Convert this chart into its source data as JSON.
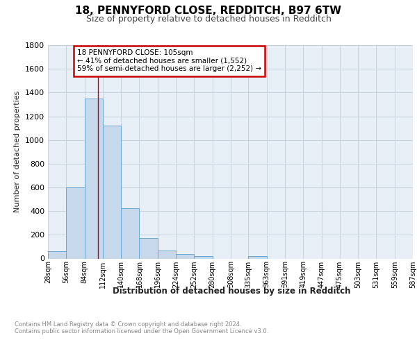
{
  "title1": "18, PENNYFORD CLOSE, REDDITCH, B97 6TW",
  "title2": "Size of property relative to detached houses in Redditch",
  "xlabel": "Distribution of detached houses by size in Redditch",
  "ylabel": "Number of detached properties",
  "footnote1": "Contains HM Land Registry data © Crown copyright and database right 2024.",
  "footnote2": "Contains public sector information licensed under the Open Government Licence v3.0.",
  "bins": [
    28,
    56,
    84,
    112,
    140,
    168,
    196,
    224,
    252,
    280,
    308,
    335,
    363,
    391,
    419,
    447,
    475,
    503,
    531,
    559,
    587
  ],
  "counts": [
    60,
    600,
    1348,
    1120,
    425,
    170,
    65,
    38,
    18,
    0,
    0,
    18,
    0,
    0,
    0,
    0,
    0,
    0,
    0,
    0
  ],
  "bar_color": "#c8d8eb",
  "bar_edge_color": "#6aaad4",
  "grid_color": "#c8d4e0",
  "bg_color": "#e8eff7",
  "property_line_x": 105,
  "property_line_color": "#cc0000",
  "annotation_text": "18 PENNYFORD CLOSE: 105sqm\n← 41% of detached houses are smaller (1,552)\n59% of semi-detached houses are larger (2,252) →",
  "ylim": [
    0,
    1800
  ],
  "yticks": [
    0,
    200,
    400,
    600,
    800,
    1000,
    1200,
    1400,
    1600,
    1800
  ],
  "tick_labels": [
    "28sqm",
    "56sqm",
    "84sqm",
    "112sqm",
    "140sqm",
    "168sqm",
    "196sqm",
    "224sqm",
    "252sqm",
    "280sqm",
    "308sqm",
    "335sqm",
    "363sqm",
    "391sqm",
    "419sqm",
    "447sqm",
    "475sqm",
    "503sqm",
    "531sqm",
    "559sqm",
    "587sqm"
  ],
  "title1_fontsize": 11,
  "title2_fontsize": 9,
  "ylabel_fontsize": 8,
  "xlabel_fontsize": 8.5,
  "footnote_fontsize": 6,
  "tick_fontsize": 7,
  "ytick_fontsize": 8
}
